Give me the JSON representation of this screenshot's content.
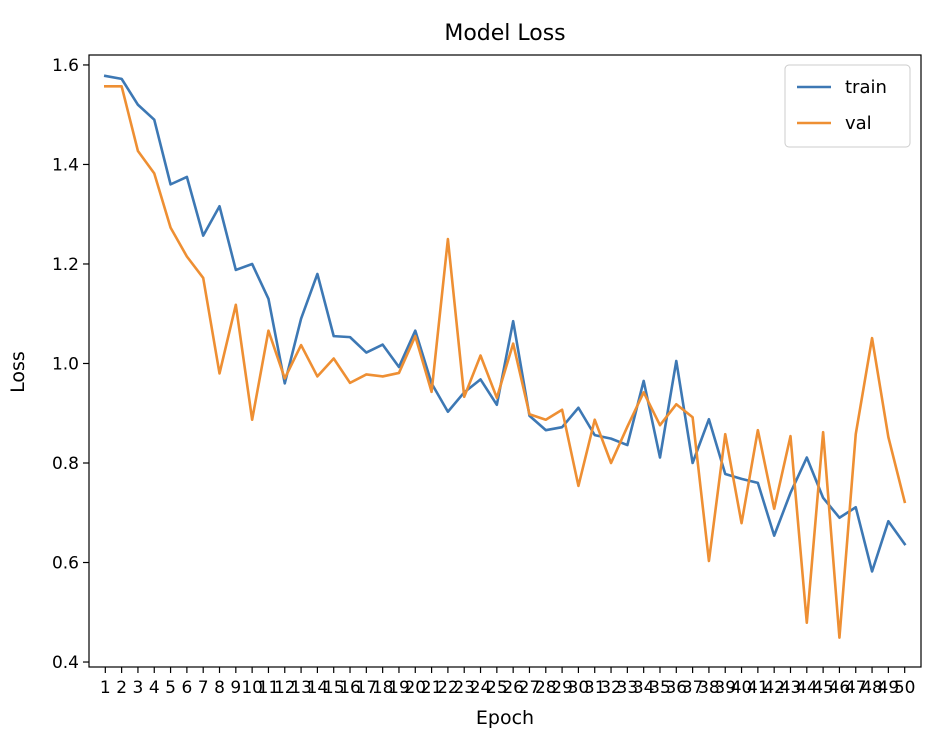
{
  "chart_data": {
    "type": "line",
    "title": "Model Loss",
    "xlabel": "Epoch",
    "ylabel": "Loss",
    "x": [
      1,
      2,
      3,
      4,
      5,
      6,
      7,
      8,
      9,
      10,
      11,
      12,
      13,
      14,
      15,
      16,
      17,
      18,
      19,
      20,
      21,
      22,
      23,
      24,
      25,
      26,
      27,
      28,
      29,
      30,
      31,
      32,
      33,
      34,
      35,
      36,
      37,
      38,
      39,
      40,
      41,
      42,
      43,
      44,
      45,
      46,
      47,
      48,
      49,
      50
    ],
    "yticks": [
      0.4,
      0.6,
      0.8,
      1.0,
      1.2,
      1.4,
      1.6
    ],
    "ytick_labels": [
      "0.4",
      "0.6",
      "0.8",
      "1.0",
      "1.2",
      "1.4",
      "1.6"
    ],
    "ylim": [
      0.39,
      1.62
    ],
    "xlim": [
      0,
      51
    ],
    "legend_position": "top-right",
    "grid": false,
    "series": [
      {
        "name": "train",
        "color": "#3d78b4",
        "values": [
          1.578,
          1.572,
          1.52,
          1.49,
          1.36,
          1.375,
          1.257,
          1.316,
          1.188,
          1.2,
          1.13,
          0.96,
          1.09,
          1.18,
          1.055,
          1.053,
          1.022,
          1.038,
          0.993,
          1.066,
          0.96,
          0.903,
          0.942,
          0.968,
          0.917,
          1.085,
          0.895,
          0.866,
          0.872,
          0.911,
          0.856,
          0.849,
          0.836,
          0.965,
          0.811,
          1.005,
          0.8,
          0.888,
          0.778,
          0.768,
          0.76,
          0.654,
          0.74,
          0.811,
          0.73,
          0.69,
          0.711,
          0.582,
          0.683,
          0.637
        ]
      },
      {
        "name": "val",
        "color": "#ee8f33",
        "values": [
          1.557,
          1.557,
          1.427,
          1.382,
          1.273,
          1.215,
          1.172,
          0.98,
          1.118,
          0.887,
          1.066,
          0.97,
          1.037,
          0.974,
          1.01,
          0.961,
          0.978,
          0.974,
          0.981,
          1.055,
          0.943,
          1.25,
          0.933,
          1.016,
          0.931,
          1.04,
          0.898,
          0.887,
          0.907,
          0.754,
          0.887,
          0.8,
          0.873,
          0.942,
          0.876,
          0.918,
          0.892,
          0.603,
          0.858,
          0.679,
          0.866,
          0.708,
          0.854,
          0.479,
          0.862,
          0.449,
          0.858,
          1.051,
          0.852,
          0.722
        ]
      }
    ]
  }
}
